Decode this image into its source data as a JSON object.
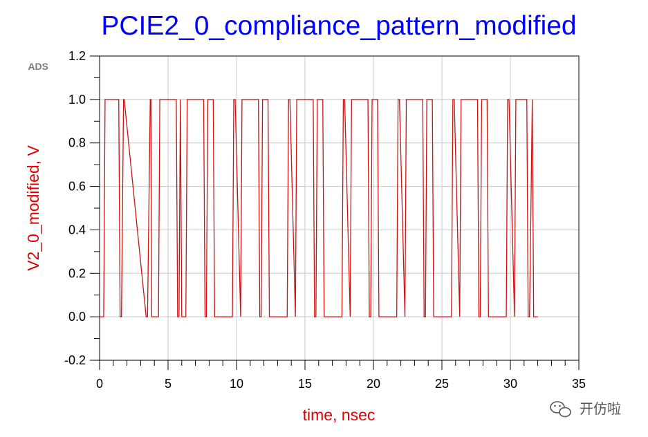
{
  "colors": {
    "title": "#0000ff",
    "axis_label": "#e00000",
    "trace": "#cc1111",
    "grid": "#c8c8c8",
    "axis": "#000000"
  },
  "tool_tag": "ADS",
  "watermark": {
    "icon": "wechat-icon",
    "text": "开仿啦"
  },
  "chart_data": {
    "type": "line",
    "title": "PCIE2_0_compliance_pattern_modified",
    "xlabel": "time, nsec",
    "ylabel": "V2_0_modified, V",
    "xlim": [
      0,
      35
    ],
    "ylim": [
      -0.2,
      1.2
    ],
    "x_ticks": [
      "0",
      "5",
      "10",
      "15",
      "20",
      "25",
      "30",
      "35"
    ],
    "y_ticks": [
      "-0.2",
      "0.0",
      "0.2",
      "0.4",
      "0.6",
      "0.8",
      "1.0",
      "1.2"
    ],
    "grid": true,
    "series": [
      {
        "x": [
          0.0,
          0.3,
          0.4,
          1.4,
          1.5,
          1.6,
          1.75,
          1.8,
          3.4,
          3.5,
          3.7,
          3.75,
          3.8,
          4.3,
          4.4,
          5.6,
          5.7,
          5.8,
          5.9,
          6.0,
          6.3,
          6.4,
          7.6,
          7.7,
          7.8,
          7.9,
          8.3,
          8.4,
          9.6,
          9.7,
          9.8,
          9.9,
          10.3,
          10.4,
          11.6,
          11.7,
          11.8,
          11.9,
          12.3,
          12.4,
          13.6,
          13.7,
          13.8,
          13.9,
          14.3,
          14.4,
          15.6,
          15.7,
          15.8,
          15.9,
          16.3,
          16.4,
          17.6,
          17.7,
          17.8,
          17.9,
          18.3,
          18.4,
          19.6,
          19.7,
          19.8,
          19.9,
          20.3,
          20.4,
          21.6,
          21.7,
          21.8,
          21.9,
          22.3,
          22.4,
          23.6,
          23.7,
          23.8,
          23.9,
          24.3,
          24.4,
          25.6,
          25.7,
          25.8,
          25.9,
          26.3,
          26.4,
          27.6,
          27.7,
          27.8,
          27.9,
          28.3,
          28.4,
          29.6,
          29.7,
          29.8,
          29.9,
          30.3,
          30.4,
          31.2,
          31.3,
          31.4,
          31.6,
          31.7,
          31.8,
          32.0
        ],
        "y": [
          0,
          0,
          1,
          1,
          0,
          0,
          1,
          1,
          0,
          0,
          1,
          1,
          0,
          0,
          1,
          1,
          0,
          0,
          1,
          0,
          0,
          1,
          1,
          0,
          0,
          1,
          1,
          0,
          0,
          0,
          1,
          1,
          0,
          1,
          1,
          0,
          0,
          1,
          1,
          0,
          0,
          0,
          1,
          1,
          0,
          1,
          1,
          0,
          0,
          1,
          1,
          0,
          0,
          0,
          1,
          1,
          0,
          1,
          1,
          0,
          0,
          1,
          1,
          0,
          0,
          0,
          1,
          1,
          0,
          1,
          1,
          0,
          0,
          1,
          1,
          0,
          0,
          0,
          1,
          1,
          0,
          1,
          1,
          0,
          0,
          1,
          1,
          0,
          0,
          0,
          1,
          1,
          0,
          1,
          1,
          0,
          0,
          1,
          0,
          0,
          0
        ]
      }
    ]
  }
}
